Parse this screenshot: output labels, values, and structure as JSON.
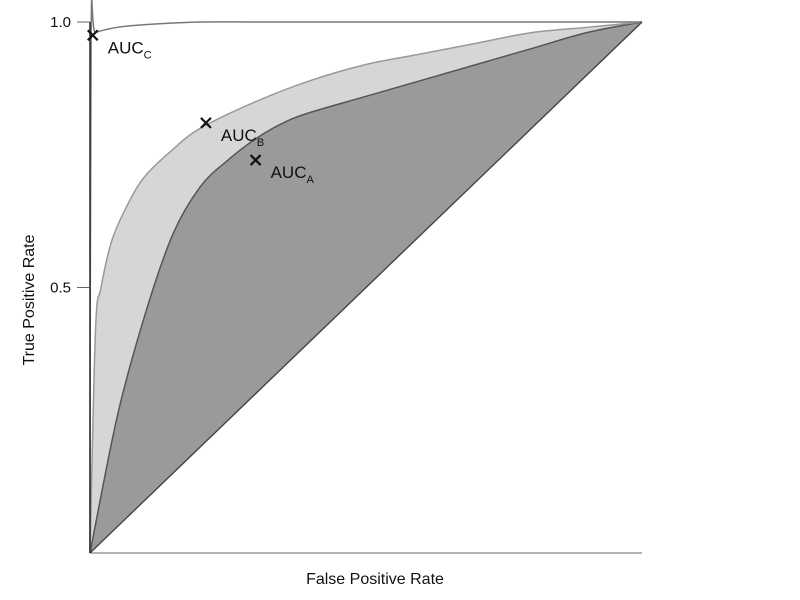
{
  "chart_data": {
    "type": "line",
    "title": "",
    "xlabel": "False Positive Rate",
    "ylabel": "True Positive Rate",
    "xlim": [
      0,
      1
    ],
    "ylim": [
      0,
      1
    ],
    "y_ticks": [
      {
        "value": 1.0,
        "label": "1.0"
      },
      {
        "value": 0.5,
        "label": "0.5"
      }
    ],
    "grid": false,
    "legend": "none",
    "series": [
      {
        "name": "",
        "color": "#555555",
        "fill": "#9a9a9a",
        "x": [
          0,
          0.05,
          0.1,
          0.15,
          0.2,
          0.25,
          0.3,
          0.35,
          0.4,
          0.5,
          0.6,
          0.7,
          0.8,
          0.9,
          1.0
        ],
        "y": [
          0,
          0.26,
          0.45,
          0.6,
          0.69,
          0.74,
          0.78,
          0.81,
          0.83,
          0.86,
          0.89,
          0.92,
          0.95,
          0.98,
          1.0
        ]
      },
      {
        "name": "",
        "color": "#999999",
        "fill": "#d6d6d6",
        "x": [
          0,
          0.01,
          0.02,
          0.04,
          0.07,
          0.1,
          0.15,
          0.2,
          0.3,
          0.4,
          0.5,
          0.6,
          0.7,
          0.8,
          0.9,
          1.0
        ],
        "y": [
          0,
          0.42,
          0.5,
          0.59,
          0.66,
          0.71,
          0.76,
          0.8,
          0.85,
          0.89,
          0.92,
          0.94,
          0.96,
          0.98,
          0.99,
          1.0
        ]
      },
      {
        "name": "",
        "color": "#777777",
        "fill": "none",
        "x": [
          0,
          0.002,
          0.01,
          0.05,
          0.1,
          0.2,
          0.3,
          0.4,
          0.5,
          0.7,
          1.0
        ],
        "y": [
          0,
          0.97,
          0.98,
          0.99,
          0.995,
          1.0,
          1.0,
          1.0,
          1.0,
          1.0,
          1.0
        ]
      },
      {
        "name": "",
        "color": "#444444",
        "fill": "none",
        "x": [
          0,
          1
        ],
        "y": [
          0,
          1
        ]
      }
    ],
    "annotations": [
      {
        "label": "AUC",
        "sub": "C",
        "x": 0.005,
        "y": 0.975
      },
      {
        "label": "AUC",
        "sub": "B",
        "x": 0.21,
        "y": 0.81
      },
      {
        "label": "AUC",
        "sub": "A",
        "x": 0.3,
        "y": 0.74
      }
    ]
  }
}
